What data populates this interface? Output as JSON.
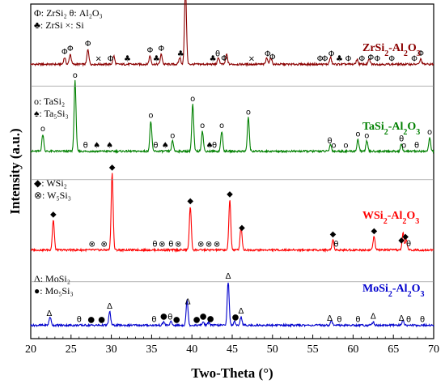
{
  "chart_data": {
    "type": "line",
    "xlabel": "Two-Theta (°)",
    "ylabel": "Intensity (a.u.)",
    "xlim": [
      20,
      70
    ],
    "xticks": [
      20,
      25,
      30,
      35,
      40,
      45,
      50,
      55,
      60,
      65,
      70
    ],
    "grid": false,
    "series": [
      {
        "name": "ZrSi2-Al2O3",
        "label_main": "ZrSi",
        "label_sub": "2",
        "label_tail": "-Al",
        "label_sub2": "2",
        "label_end": "O",
        "label_sub3": "3",
        "color": "#8b0000",
        "baseline": 0.82,
        "peaks": [
          [
            24.2,
            0.02
          ],
          [
            24.9,
            0.03
          ],
          [
            27.1,
            0.045
          ],
          [
            30.3,
            0.025
          ],
          [
            34.8,
            0.025
          ],
          [
            36.2,
            0.03
          ],
          [
            38.5,
            0.02
          ],
          [
            39.2,
            0.23
          ],
          [
            43.3,
            0.02
          ],
          [
            44.3,
            0.03
          ],
          [
            49.3,
            0.02
          ],
          [
            49.8,
            0.02
          ],
          [
            57.2,
            0.02
          ],
          [
            60.5,
            0.015
          ],
          [
            62.0,
            0.015
          ],
          [
            68.4,
            0.015
          ]
        ],
        "markers": [
          {
            "x": 24.2,
            "s": "Φ"
          },
          {
            "x": 24.9,
            "s": "Φ"
          },
          {
            "x": 27.1,
            "s": "Φ"
          },
          {
            "x": 28.4,
            "s": "×"
          },
          {
            "x": 29.9,
            "s": "Φ"
          },
          {
            "x": 32.0,
            "s": "♣"
          },
          {
            "x": 34.8,
            "s": "Φ"
          },
          {
            "x": 35.6,
            "s": "♣"
          },
          {
            "x": 36.2,
            "s": "Φ"
          },
          {
            "x": 38.6,
            "s": "♣"
          },
          {
            "x": 39.2,
            "s": "Φ"
          },
          {
            "x": 42.6,
            "s": "♣"
          },
          {
            "x": 43.2,
            "s": "θ"
          },
          {
            "x": 44.0,
            "s": "Φ"
          },
          {
            "x": 47.4,
            "s": "×"
          },
          {
            "x": 49.4,
            "s": "Φ"
          },
          {
            "x": 50.0,
            "s": "Φ"
          },
          {
            "x": 55.9,
            "s": "Φ"
          },
          {
            "x": 56.5,
            "s": "Φ"
          },
          {
            "x": 57.3,
            "s": "Φ"
          },
          {
            "x": 58.3,
            "s": "♣"
          },
          {
            "x": 59.4,
            "s": "Φ"
          },
          {
            "x": 61.1,
            "s": "Φ"
          },
          {
            "x": 62.2,
            "s": "Φ"
          },
          {
            "x": 63.0,
            "s": "Φ"
          },
          {
            "x": 64.8,
            "s": "Φ"
          },
          {
            "x": 67.6,
            "s": "Φ"
          },
          {
            "x": 68.4,
            "s": "Φ"
          }
        ]
      },
      {
        "name": "TaSi2-Al2O3",
        "label_main": "TaSi",
        "label_sub": "2",
        "label_tail": "-Al",
        "label_sub2": "2",
        "label_end": "O",
        "label_sub3": "3",
        "color": "#008000",
        "baseline": 0.56,
        "peaks": [
          [
            21.5,
            0.05
          ],
          [
            25.5,
            0.21
          ],
          [
            34.9,
            0.09
          ],
          [
            37.6,
            0.03
          ],
          [
            40.1,
            0.14
          ],
          [
            41.3,
            0.06
          ],
          [
            43.7,
            0.06
          ],
          [
            47.0,
            0.1
          ],
          [
            57.2,
            0.02
          ],
          [
            60.6,
            0.035
          ],
          [
            61.7,
            0.03
          ],
          [
            66.0,
            0.02
          ],
          [
            69.5,
            0.04
          ]
        ],
        "markers": [
          {
            "x": 21.5,
            "s": "o"
          },
          {
            "x": 25.5,
            "s": "o"
          },
          {
            "x": 26.8,
            "s": "θ"
          },
          {
            "x": 28.2,
            "s": "♠"
          },
          {
            "x": 29.8,
            "s": "♠"
          },
          {
            "x": 34.9,
            "s": "o"
          },
          {
            "x": 35.5,
            "s": "θ"
          },
          {
            "x": 36.7,
            "s": "♠"
          },
          {
            "x": 37.6,
            "s": "o"
          },
          {
            "x": 40.1,
            "s": "o"
          },
          {
            "x": 41.3,
            "s": "o"
          },
          {
            "x": 42.2,
            "s": "♠"
          },
          {
            "x": 42.8,
            "s": "θ"
          },
          {
            "x": 43.7,
            "s": "o"
          },
          {
            "x": 47.0,
            "s": "o"
          },
          {
            "x": 57.1,
            "s": "θ"
          },
          {
            "x": 57.6,
            "s": "o"
          },
          {
            "x": 59.1,
            "s": "o"
          },
          {
            "x": 60.6,
            "s": "o"
          },
          {
            "x": 61.7,
            "s": "o"
          },
          {
            "x": 66.0,
            "s": "θ"
          },
          {
            "x": 66.3,
            "s": "o"
          },
          {
            "x": 67.9,
            "s": "θ"
          },
          {
            "x": 69.5,
            "s": "o"
          }
        ]
      },
      {
        "name": "WSi2-Al2O3",
        "label_main": "WSi",
        "label_sub": "2",
        "label_tail": "-Al",
        "label_sub2": "2",
        "label_end": "O",
        "label_sub3": "3",
        "color": "#ff0000",
        "baseline": 0.265,
        "peaks": [
          [
            22.8,
            0.09
          ],
          [
            30.1,
            0.23
          ],
          [
            39.8,
            0.13
          ],
          [
            44.7,
            0.15
          ],
          [
            46.1,
            0.07
          ],
          [
            57.5,
            0.03
          ],
          [
            62.6,
            0.04
          ],
          [
            66.2,
            0.05
          ],
          [
            66.6,
            0.03
          ]
        ],
        "markers": [
          {
            "x": 22.8,
            "s": "◆"
          },
          {
            "x": 27.6,
            "s": "⊗"
          },
          {
            "x": 29.1,
            "s": "⊗"
          },
          {
            "x": 30.1,
            "s": "◆"
          },
          {
            "x": 35.4,
            "s": "θ"
          },
          {
            "x": 36.3,
            "s": "⊗"
          },
          {
            "x": 37.4,
            "s": "θ"
          },
          {
            "x": 38.3,
            "s": "⊗"
          },
          {
            "x": 39.8,
            "s": "◆"
          },
          {
            "x": 41.1,
            "s": "⊗"
          },
          {
            "x": 42.1,
            "s": "⊗"
          },
          {
            "x": 43.1,
            "s": "⊗"
          },
          {
            "x": 44.7,
            "s": "◆"
          },
          {
            "x": 46.2,
            "s": "◆"
          },
          {
            "x": 57.5,
            "s": "◆"
          },
          {
            "x": 57.9,
            "s": "θ"
          },
          {
            "x": 62.6,
            "s": "◆"
          },
          {
            "x": 66.0,
            "s": "◆"
          },
          {
            "x": 66.5,
            "s": "◆"
          },
          {
            "x": 66.9,
            "s": "θ"
          }
        ]
      },
      {
        "name": "MoSi2-Al2O3",
        "label_main": "MoSi",
        "label_sub": "2",
        "label_tail": "-Al",
        "label_sub2": "2",
        "label_end": "O",
        "label_sub3": "3",
        "color": "#0000cd",
        "baseline": 0.04,
        "peaks": [
          [
            22.4,
            0.025
          ],
          [
            29.8,
            0.04
          ],
          [
            36.5,
            0.01
          ],
          [
            37.4,
            0.01
          ],
          [
            39.4,
            0.075
          ],
          [
            41.4,
            0.01
          ],
          [
            42.1,
            0.01
          ],
          [
            44.5,
            0.13
          ],
          [
            45.3,
            0.01
          ],
          [
            46.1,
            0.025
          ],
          [
            57.3,
            0.015
          ],
          [
            62.5,
            0.01
          ],
          [
            66.2,
            0.015
          ]
        ],
        "markers": [
          {
            "x": 22.3,
            "s": "Δ"
          },
          {
            "x": 26.0,
            "s": "θ"
          },
          {
            "x": 27.5,
            "s": "●"
          },
          {
            "x": 28.8,
            "s": "●"
          },
          {
            "x": 29.8,
            "s": "Δ"
          },
          {
            "x": 35.3,
            "s": "θ"
          },
          {
            "x": 36.5,
            "s": "●"
          },
          {
            "x": 37.3,
            "s": "θ"
          },
          {
            "x": 38.1,
            "s": "●"
          },
          {
            "x": 39.5,
            "s": "Δ"
          },
          {
            "x": 40.6,
            "s": "●"
          },
          {
            "x": 41.4,
            "s": "●"
          },
          {
            "x": 42.3,
            "s": "●"
          },
          {
            "x": 44.5,
            "s": "Δ"
          },
          {
            "x": 45.4,
            "s": "●"
          },
          {
            "x": 46.1,
            "s": "Δ"
          },
          {
            "x": 57.1,
            "s": "Δ"
          },
          {
            "x": 58.3,
            "s": "θ"
          },
          {
            "x": 60.6,
            "s": "θ"
          },
          {
            "x": 62.5,
            "s": "Δ"
          },
          {
            "x": 66.0,
            "s": "Δ"
          },
          {
            "x": 66.9,
            "s": "θ"
          },
          {
            "x": 68.6,
            "s": "θ"
          }
        ]
      }
    ],
    "legends": [
      {
        "lines": [
          "Φ: ZrSi₂  θ: Al₂O₃",
          "♣: ZrSi   ×: Si"
        ]
      },
      {
        "lines": [
          "o: TaSi₂",
          "♠: Ta₅Si₃"
        ]
      },
      {
        "lines": [
          "◆: WSi₂",
          "⊗: W₅Si₃"
        ]
      },
      {
        "lines": [
          "Δ: MoSi₂",
          "●: Mo₅Si₃"
        ]
      }
    ]
  }
}
